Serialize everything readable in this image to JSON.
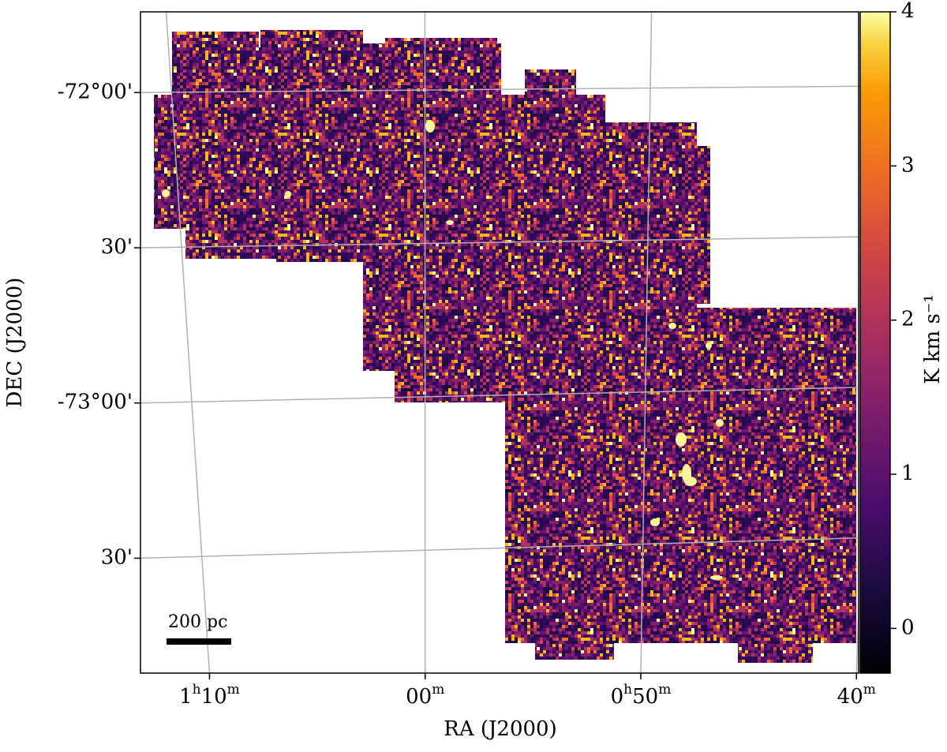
{
  "chart_data": {
    "type": "image",
    "x_label": "RA (J2000)",
    "y_label": "DEC (J2000)",
    "xlim": [
      73.2,
      39.9
    ],
    "xticks": [
      {
        "value": 70,
        "label": "1h10m"
      },
      {
        "value": 60,
        "label": "00m"
      },
      {
        "value": 50,
        "label": "0h50m"
      },
      {
        "value": 40,
        "label": "40m"
      }
    ],
    "ylim": [
      -73.87,
      -71.74
    ],
    "yticks": [
      {
        "value": -72,
        "label": "-72°00'"
      },
      {
        "value": -72.5,
        "label": "30'"
      },
      {
        "value": -73,
        "label": "-73°00'"
      },
      {
        "value": -73.5,
        "label": "30'"
      }
    ],
    "grid": true,
    "colormap": "inferno",
    "clim": [
      -0.29,
      4
    ],
    "cticks": [
      0,
      1,
      2,
      3,
      4
    ],
    "colorbar_label": "K km s⁻¹",
    "scale_bar_label": "200 pc"
  }
}
